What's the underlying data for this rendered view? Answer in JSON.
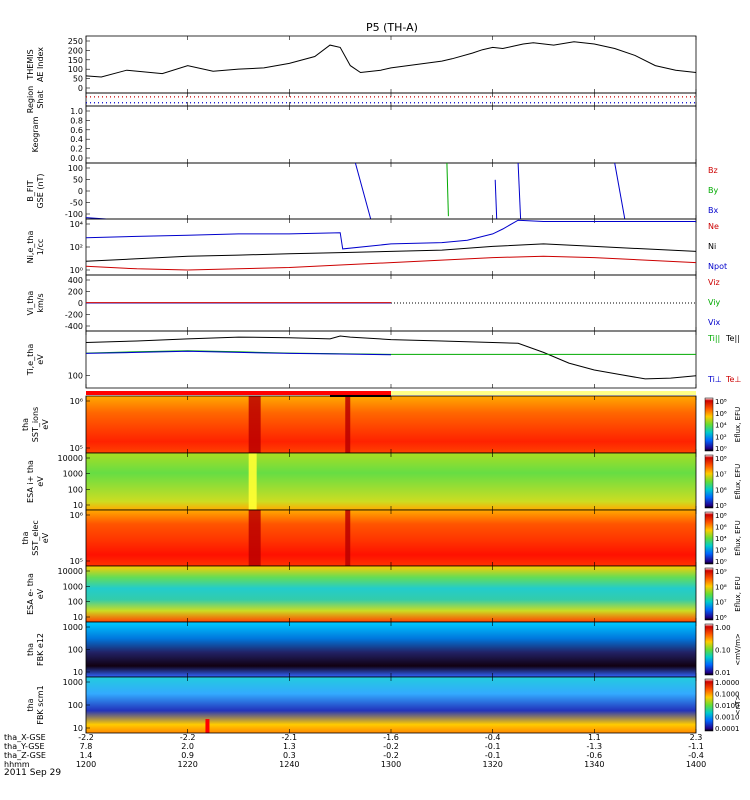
{
  "title": "P5 (TH-A)",
  "date_label": "2011 Sep 29",
  "chart_data": {
    "type": "line",
    "time_axis": {
      "row_labels": [
        "tha_X-GSE",
        "tha_Y-GSE",
        "tha_Z-GSE",
        "hhmm"
      ],
      "ticks": [
        {
          "hhmm": "1200",
          "x_gse": "-2.2",
          "y_gse": "7.8",
          "z_gse": "1.4"
        },
        {
          "hhmm": "1220",
          "x_gse": "-2.2",
          "y_gse": "2.0",
          "z_gse": "0.9"
        },
        {
          "hhmm": "1240",
          "x_gse": "-2.1",
          "y_gse": "1.3",
          "z_gse": "0.3"
        },
        {
          "hhmm": "1300",
          "x_gse": "-1.6",
          "y_gse": "-0.2",
          "z_gse": "-0.2"
        },
        {
          "hhmm": "1320",
          "x_gse": "-0.4",
          "y_gse": "-0.1",
          "z_gse": "-0.1"
        },
        {
          "hhmm": "1340",
          "x_gse": "1.1",
          "y_gse": "-1.3",
          "z_gse": "-0.6"
        },
        {
          "hhmm": "1400",
          "x_gse": "2.3",
          "y_gse": "-1.1",
          "z_gse": "-0.4"
        }
      ]
    },
    "panels": [
      {
        "id": "ae",
        "ylabel": [
          "THEMIS",
          "AE Index"
        ],
        "type": "line",
        "ylim": [
          0,
          250
        ],
        "yticks": [
          "250",
          "200",
          "150",
          "100",
          "50",
          "0"
        ],
        "series": [
          {
            "color": "#000000",
            "x": [
              0,
              3,
              8,
              15,
              20,
              25,
              30,
              35,
              40,
              45,
              48,
              50,
              52,
              54,
              58,
              60,
              65,
              70,
              72,
              76,
              78,
              80,
              82,
              84,
              86,
              88,
              92,
              96,
              100,
              104,
              108,
              112,
              116,
              120
            ],
            "y": [
              75,
              70,
              100,
              85,
              120,
              95,
              105,
              110,
              130,
              160,
              210,
              200,
              120,
              90,
              100,
              110,
              125,
              140,
              150,
              175,
              190,
              200,
              195,
              205,
              215,
              220,
              210,
              225,
              215,
              195,
              165,
              120,
              100,
              90
            ]
          }
        ]
      },
      {
        "id": "region",
        "ylabel": [
          "Region",
          "Shat"
        ],
        "type": "dots",
        "series": [
          {
            "color": "#cc0000",
            "x0": 0,
            "x1": 120,
            "level": 0.3
          },
          {
            "color": "#0000cc",
            "x0": 0,
            "x1": 120,
            "level": 0.75
          }
        ]
      },
      {
        "id": "keogram",
        "ylabel": [
          "Keogram"
        ],
        "type": "line",
        "ylim": [
          0,
          1.0
        ],
        "yticks": [
          "1.0",
          "0.8",
          "0.6",
          "0.4",
          "0.2",
          "0.0"
        ],
        "series": []
      },
      {
        "id": "bfit",
        "ylabel": [
          "B_FIT",
          "GSE (nT)"
        ],
        "type": "line",
        "ylim": [
          -100,
          100
        ],
        "yticks": [
          "100",
          "50",
          "0",
          "-50",
          "-100"
        ],
        "legend": [
          {
            "label": "Bz",
            "color": "#cc0000"
          },
          {
            "label": "By",
            "color": "#00aa00"
          },
          {
            "label": "Bx",
            "color": "#0000cc"
          }
        ],
        "series": [
          {
            "color": "#0000cc",
            "x": [
              0,
              4
            ],
            "y": [
              -95,
              -100
            ]
          },
          {
            "color": "#0000cc",
            "x": [
              53,
              56
            ],
            "y": [
              100,
              -100
            ]
          },
          {
            "color": "#00aa00",
            "x": [
              71,
              71.3
            ],
            "y": [
              100,
              -90
            ]
          },
          {
            "color": "#0000cc",
            "x": [
              80.5,
              80.8
            ],
            "y": [
              40,
              -100
            ]
          },
          {
            "color": "#0000cc",
            "x": [
              85,
              85.5
            ],
            "y": [
              100,
              -100
            ]
          },
          {
            "color": "#0000cc",
            "x": [
              104,
              106
            ],
            "y": [
              100,
              -100
            ]
          }
        ]
      },
      {
        "id": "density",
        "ylabel": [
          "Ni,e_tha",
          "1/cc"
        ],
        "type": "line",
        "ylim": [
          0.5,
          5
        ],
        "yticks": [
          "10⁴",
          "10²",
          "10⁰"
        ],
        "legend": [
          {
            "label": "Ne",
            "color": "#cc0000"
          },
          {
            "label": "Ni",
            "color": "#000000"
          },
          {
            "label": "Npot",
            "color": "#0000cc"
          }
        ],
        "series": [
          {
            "color": "#0000cc",
            "x": [
              0,
              10,
              20,
              30,
              40,
              50,
              50.5,
              60,
              70,
              75,
              80,
              82,
              85,
              90,
              100,
              110,
              120
            ],
            "y": [
              3.5,
              3.6,
              3.7,
              3.8,
              3.8,
              3.9,
              2.6,
              3.0,
              3.1,
              3.3,
              3.8,
              4.2,
              4.9,
              4.8,
              4.8,
              4.8,
              4.8
            ]
          },
          {
            "color": "#000000",
            "x": [
              0,
              10,
              20,
              30,
              40,
              50,
              60,
              70,
              80,
              90,
              100,
              110,
              120
            ],
            "y": [
              1.6,
              1.8,
              2.0,
              2.1,
              2.2,
              2.3,
              2.4,
              2.5,
              2.8,
              3.0,
              2.8,
              2.6,
              2.4
            ]
          },
          {
            "color": "#cc0000",
            "x": [
              0,
              10,
              20,
              30,
              40,
              50,
              60,
              70,
              80,
              90,
              100,
              110,
              120
            ],
            "y": [
              1.2,
              1.0,
              0.9,
              1.0,
              1.1,
              1.3,
              1.5,
              1.7,
              1.9,
              2.0,
              1.9,
              1.7,
              1.5
            ]
          }
        ]
      },
      {
        "id": "velocity",
        "ylabel": [
          "Vi_tha",
          "km/s"
        ],
        "type": "line",
        "ylim": [
          -400,
          400
        ],
        "yticks": [
          "400",
          "200",
          "0",
          "-200",
          "-400"
        ],
        "legend": [
          {
            "label": "Viz",
            "color": "#cc0000"
          },
          {
            "label": "Viy",
            "color": "#00aa00"
          },
          {
            "label": "Vix",
            "color": "#0000cc"
          }
        ],
        "series": [
          {
            "color": "#0000cc",
            "x": [
              0,
              60
            ],
            "y": [
              0,
              0
            ]
          },
          {
            "color": "#cc0000",
            "x": [
              0,
              60
            ],
            "y": [
              5,
              5
            ]
          },
          {
            "color": "#000000",
            "x": [
              60,
              120
            ],
            "y": [
              0,
              0
            ],
            "dotted": true
          }
        ]
      },
      {
        "id": "temp",
        "ylabel": [
          "Ti,e_tha",
          "eV"
        ],
        "type": "line",
        "ylim": [
          50,
          2000
        ],
        "yticks": [
          "100"
        ],
        "legend": [
          {
            "label": "Ti||",
            "color": "#00aa00",
            "label2": "Te||",
            "color2": "#000000"
          },
          {
            "label": "Ti⊥",
            "color": "#0000cc",
            "label2": "Te⊥",
            "color2": "#cc0000"
          }
        ],
        "series": [
          {
            "color": "#000000",
            "x": [
              0,
              10,
              20,
              30,
              40,
              48,
              50,
              52,
              60,
              70,
              80,
              85,
              90,
              95,
              100,
              105,
              110,
              115,
              120
            ],
            "y": [
              950,
              1050,
              1200,
              1350,
              1300,
              1200,
              1450,
              1350,
              1150,
              1050,
              950,
              900,
              500,
              250,
              160,
              120,
              90,
              95,
              110
            ]
          },
          {
            "color": "#00aa00",
            "x": [
              0,
              10,
              20,
              30,
              40,
              50,
              60,
              120
            ],
            "y": [
              480,
              520,
              560,
              520,
              480,
              460,
              440,
              440
            ]
          },
          {
            "color": "#0000cc",
            "x": [
              0,
              10,
              20,
              30,
              40,
              50,
              60
            ],
            "y": [
              470,
              500,
              540,
              500,
              470,
              450,
              430
            ]
          }
        ]
      },
      {
        "id": "ssti",
        "ylabel": [
          "tha",
          "SST_ions",
          "eV"
        ],
        "type": "heatmap",
        "yticks": [
          "10⁶",
          "10⁵"
        ],
        "cbar_label": "Eflux, EFU",
        "cbar_ticks": [
          "10⁸",
          "10⁶",
          "10⁴",
          "10²",
          "10⁰"
        ]
      },
      {
        "id": "esai",
        "ylabel": [
          "ESA i+ tha",
          "eV"
        ],
        "type": "heatmap",
        "yticks": [
          "10000",
          "1000",
          "100",
          "10"
        ],
        "cbar_label": "Eflux, EFU",
        "cbar_ticks": [
          "10⁸",
          "10⁷",
          "10⁶",
          "10⁵"
        ]
      },
      {
        "id": "sste",
        "ylabel": [
          "tha",
          "SST_elec",
          "eV"
        ],
        "type": "heatmap",
        "yticks": [
          "10⁶",
          "10⁵"
        ],
        "cbar_label": "Eflux, EFU",
        "cbar_ticks": [
          "10⁸",
          "10⁶",
          "10⁴",
          "10²",
          "10⁰"
        ]
      },
      {
        "id": "esae",
        "ylabel": [
          "ESA e- tha",
          "eV"
        ],
        "type": "heatmap",
        "yticks": [
          "10000",
          "1000",
          "100",
          "10"
        ],
        "cbar_label": "Eflux, EFU",
        "cbar_ticks": [
          "10⁹",
          "10⁸",
          "10⁷",
          "10⁶"
        ]
      },
      {
        "id": "fbke",
        "ylabel": [
          "tha",
          "FBK e12"
        ],
        "type": "heatmap",
        "yticks": [
          "1000",
          "100",
          "10"
        ],
        "cbar_label": "<mV/m>",
        "cbar_ticks": [
          "1.00",
          "0.10",
          "0.01"
        ]
      },
      {
        "id": "fbks",
        "ylabel": [
          "tha",
          "FBK scm1"
        ],
        "type": "heatmap",
        "yticks": [
          "1000",
          "100",
          "10"
        ],
        "cbar_label": "<nT>",
        "cbar_ticks": [
          "1.0000",
          "0.1000",
          "0.0100",
          "0.0010",
          "0.0001"
        ]
      }
    ]
  }
}
